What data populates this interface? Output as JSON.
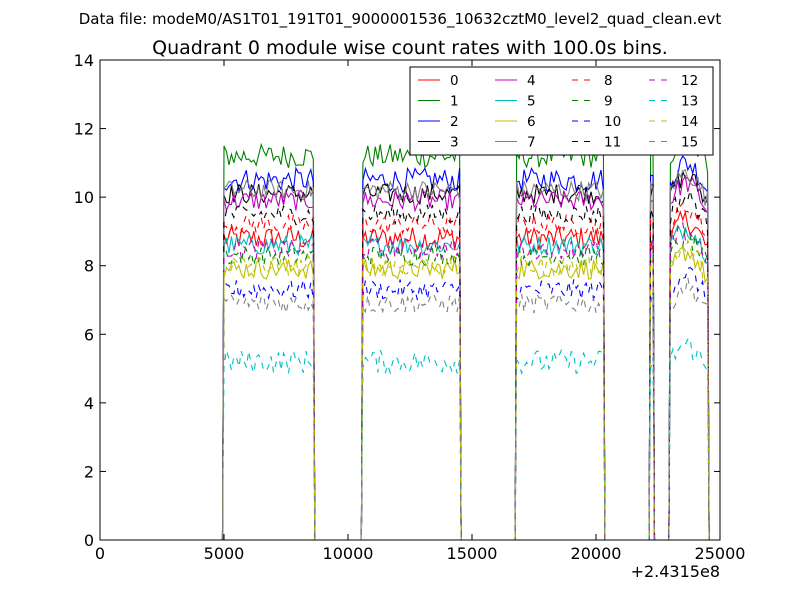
{
  "figure": {
    "suptitle": "Data file: modeM0/AS1T01_191T01_9000001536_10632cztM0_level2_quad_clean.evt"
  },
  "chart_data": {
    "type": "line",
    "title": "Quadrant 0 module wise count rates with 100.0s bins.",
    "xlabel": "",
    "ylabel": "",
    "xlim": [
      0,
      25000
    ],
    "ylim": [
      0,
      14
    ],
    "x_offset_label": "+2.4315e8",
    "x_ticks": [
      0,
      5000,
      10000,
      15000,
      20000,
      25000
    ],
    "y_ticks": [
      0,
      2,
      4,
      6,
      8,
      10,
      12,
      14
    ],
    "grid": false,
    "legend_placement": "top-right",
    "legend_columns": 4,
    "segments": [
      {
        "start": 5000,
        "end": 8600
      },
      {
        "start": 10600,
        "end": 14500
      },
      {
        "start": 16800,
        "end": 20300
      },
      {
        "start": 22200,
        "end": 22300
      },
      {
        "start": 23000,
        "end": 24500
      }
    ],
    "gap_value": 0,
    "series": [
      {
        "name": "0",
        "level": 8.8,
        "noise": 0.35,
        "color": "#ff0000",
        "dash": "solid"
      },
      {
        "name": "1",
        "level": 11.2,
        "noise": 0.35,
        "color": "#008000",
        "dash": "solid"
      },
      {
        "name": "2",
        "level": 10.5,
        "noise": 0.35,
        "color": "#0000ff",
        "dash": "solid"
      },
      {
        "name": "3",
        "level": 10.1,
        "noise": 0.3,
        "color": "#000000",
        "dash": "solid"
      },
      {
        "name": "4",
        "level": 9.9,
        "noise": 0.3,
        "color": "#bf00bf",
        "dash": "solid"
      },
      {
        "name": "5",
        "level": 8.6,
        "noise": 0.3,
        "color": "#00bfbf",
        "dash": "solid"
      },
      {
        "name": "6",
        "level": 7.9,
        "noise": 0.3,
        "color": "#bfbf00",
        "dash": "solid"
      },
      {
        "name": "7",
        "level": 10.2,
        "noise": 0.3,
        "color": "#808080",
        "dash": "solid"
      },
      {
        "name": "8",
        "level": 9.2,
        "noise": 0.3,
        "color": "#ff0000",
        "dash": "dashed"
      },
      {
        "name": "9",
        "level": 8.3,
        "noise": 0.3,
        "color": "#008000",
        "dash": "dashed"
      },
      {
        "name": "10",
        "level": 7.3,
        "noise": 0.3,
        "color": "#0000ff",
        "dash": "dashed"
      },
      {
        "name": "11",
        "level": 9.5,
        "noise": 0.3,
        "color": "#000000",
        "dash": "dashed"
      },
      {
        "name": "12",
        "level": 8.5,
        "noise": 0.3,
        "color": "#bf00bf",
        "dash": "dashed"
      },
      {
        "name": "13",
        "level": 5.2,
        "noise": 0.35,
        "color": "#00bfbf",
        "dash": "dashed"
      },
      {
        "name": "14",
        "level": 8.0,
        "noise": 0.3,
        "color": "#bfbf00",
        "dash": "dashed"
      },
      {
        "name": "15",
        "level": 6.9,
        "noise": 0.3,
        "color": "#808080",
        "dash": "dashed"
      }
    ]
  }
}
